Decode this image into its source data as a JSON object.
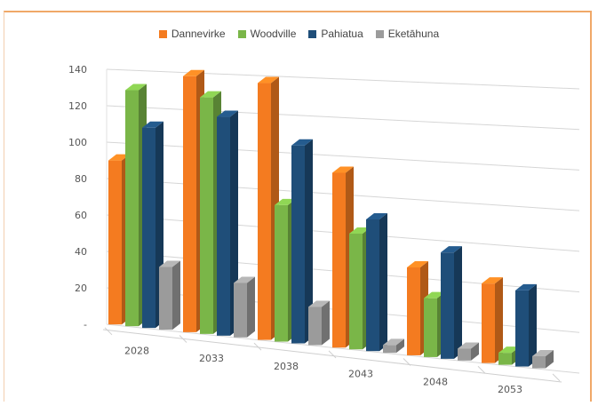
{
  "chart_data": {
    "type": "bar",
    "categories": [
      "2028",
      "2033",
      "2038",
      "2043",
      "2048",
      "2053"
    ],
    "series": [
      {
        "name": "Dannevirke",
        "color": "#f47b20",
        "values": [
          90,
          138,
          136,
          91,
          45,
          40
        ]
      },
      {
        "name": "Woodville",
        "color": "#7ab648",
        "values": [
          129,
          127,
          72,
          60,
          30,
          6
        ]
      },
      {
        "name": "Pahiatua",
        "color": "#1f4e79",
        "values": [
          109,
          117,
          104,
          68,
          54,
          38
        ]
      },
      {
        "name": "Eketāhuna",
        "color": "#9b9b9b",
        "values": [
          34,
          29,
          20,
          4,
          6,
          6
        ]
      }
    ],
    "y_ticks": [
      "-",
      "20",
      "40",
      "60",
      "80",
      "100",
      "120",
      "140"
    ],
    "ylim": [
      0,
      140
    ],
    "legend_position": "top",
    "grid": true
  }
}
